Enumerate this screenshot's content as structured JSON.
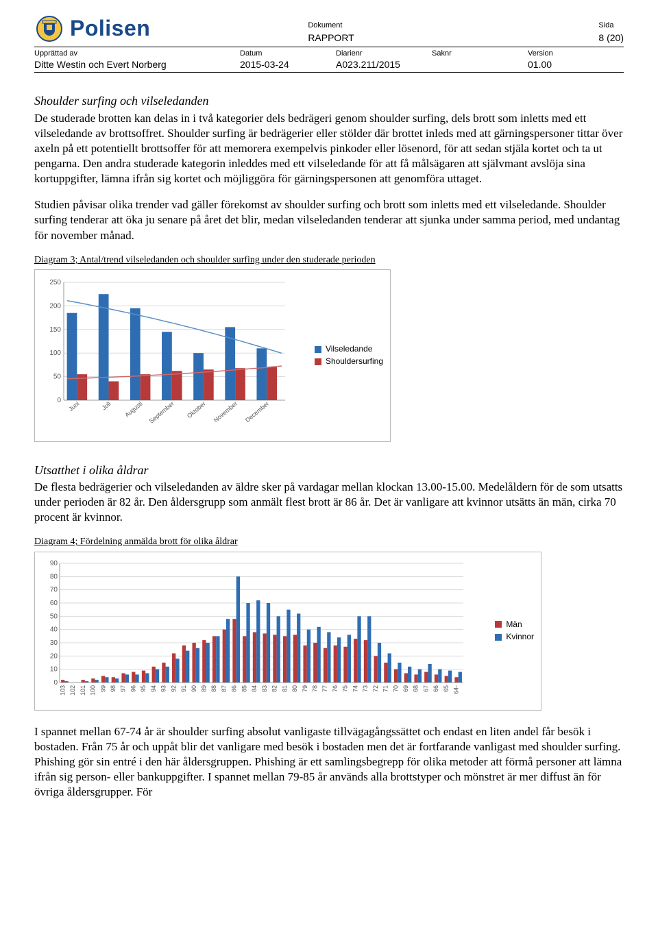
{
  "header": {
    "dokument_label": "Dokument",
    "dokument_value": "RAPPORT",
    "sida_label": "Sida",
    "sida_value": "8 (20)",
    "logo_text": "Polisen"
  },
  "meta": {
    "upprattad_label": "Upprättad av",
    "upprattad_value": "Ditte Westin och Evert Norberg",
    "datum_label": "Datum",
    "datum_value": "2015-03-24",
    "diarienr_label": "Diarienr",
    "diarienr_value": "A023.211/2015",
    "saknr_label": "Saknr",
    "saknr_value": "",
    "version_label": "Version",
    "version_value": "01.00"
  },
  "section1": {
    "heading": "Shoulder surfing och vilseledanden",
    "p1": "De studerade brotten kan delas in i två kategorier dels bedrägeri genom shoulder surfing, dels brott som inletts med ett vilseledande av brottsoffret. Shoulder surfing är bedrägerier eller stölder där brottet inleds med att gärningspersoner tittar över axeln på ett potentiellt brottsoffer för att memorera exempelvis pinkoder eller lösenord, för att sedan stjäla kortet och ta ut pengarna. Den andra studerade kategorin inleddes med ett vilseledande för att få målsägaren att självmant avslöja sina kortuppgifter, lämna ifrån sig kortet och möjliggöra för gärningspersonen att genomföra uttaget.",
    "p2": "Studien påvisar olika trender vad gäller förekomst av shoulder surfing och brott som inletts med ett vilseledande. Shoulder surfing tenderar att öka ju senare på året det blir, medan vilseledanden tenderar att sjunka under samma period, med undantag för november månad."
  },
  "diagram3": {
    "caption": "Diagram 3; Antal/trend vilseledanden och shoulder surfing under den studerade perioden",
    "type": "bar",
    "ymax": 250,
    "ytick_step": 50,
    "categories": [
      "Juni",
      "Juli",
      "Augusti",
      "September",
      "Oktober",
      "November",
      "December"
    ],
    "series": [
      {
        "name": "Vilseledande",
        "color": "#2f6db3",
        "values": [
          185,
          225,
          195,
          145,
          100,
          155,
          110
        ]
      },
      {
        "name": "Shouldersurfing",
        "color": "#b73a3a",
        "values": [
          55,
          40,
          55,
          62,
          65,
          68,
          70
        ]
      }
    ],
    "trend_colors": [
      "#5a8fc9",
      "#c86a6a"
    ],
    "grid_color": "#d9d9d9",
    "axis_color": "#999999",
    "bg": "#ffffff",
    "label_fontsize": 10
  },
  "section2": {
    "heading": "Utsatthet i olika åldrar",
    "p1": "De flesta bedrägerier och vilseledanden av äldre sker på vardagar mellan klockan 13.00-15.00. Medelåldern för de som utsatts under perioden är 82 år. Den åldersgrupp som anmält flest brott är 86 år. Det är vanligare att kvinnor utsätts än män, cirka 70 procent är kvinnor."
  },
  "diagram4": {
    "caption": "Diagram 4; Fördelning anmälda brott för olika åldrar",
    "type": "bar",
    "ymax": 90,
    "ytick_step": 10,
    "categories": [
      "103",
      "102",
      "101",
      "100",
      "99",
      "98",
      "97",
      "96",
      "95",
      "94",
      "93",
      "92",
      "91",
      "90",
      "89",
      "88",
      "87",
      "86",
      "85",
      "84",
      "83",
      "82",
      "81",
      "80",
      "79",
      "78",
      "77",
      "76",
      "75",
      "74",
      "73",
      "72",
      "71",
      "70",
      "69",
      "68",
      "67",
      "66",
      "65",
      "64-"
    ],
    "series": [
      {
        "name": "Män",
        "color": "#b73a3a",
        "values": [
          2,
          0,
          2,
          3,
          5,
          4,
          7,
          8,
          9,
          12,
          15,
          22,
          28,
          30,
          32,
          35,
          40,
          48,
          35,
          38,
          37,
          36,
          35,
          36,
          28,
          30,
          26,
          28,
          27,
          33,
          32,
          20,
          15,
          10,
          7,
          6,
          8,
          6,
          5,
          4
        ]
      },
      {
        "name": "Kvinnor",
        "color": "#2f6db3",
        "values": [
          1,
          0,
          1,
          2,
          4,
          3,
          6,
          6,
          7,
          10,
          12,
          18,
          24,
          26,
          30,
          35,
          48,
          80,
          60,
          62,
          60,
          50,
          55,
          52,
          40,
          42,
          38,
          34,
          36,
          50,
          50,
          30,
          22,
          15,
          12,
          10,
          14,
          10,
          9,
          8
        ]
      }
    ],
    "grid_color": "#d9d9d9",
    "axis_color": "#999999",
    "bg": "#ffffff",
    "label_fontsize": 9
  },
  "section3": {
    "p1": "I spannet mellan 67-74 år är shoulder surfing absolut vanligaste tillvägagångssättet och endast en liten andel får besök i bostaden. Från 75 år och uppåt blir det vanligare med besök i bostaden men det är fortfarande vanligast med shoulder surfing. Phishing gör sin entré i den här åldersgruppen. Phishing är ett samlingsbegrepp för olika metoder att förmå personer att lämna ifrån sig person- eller bankuppgifter. I spannet mellan 79-85 år används alla brottstyper och mönstret är mer diffust än för övriga åldersgrupper. För"
  }
}
